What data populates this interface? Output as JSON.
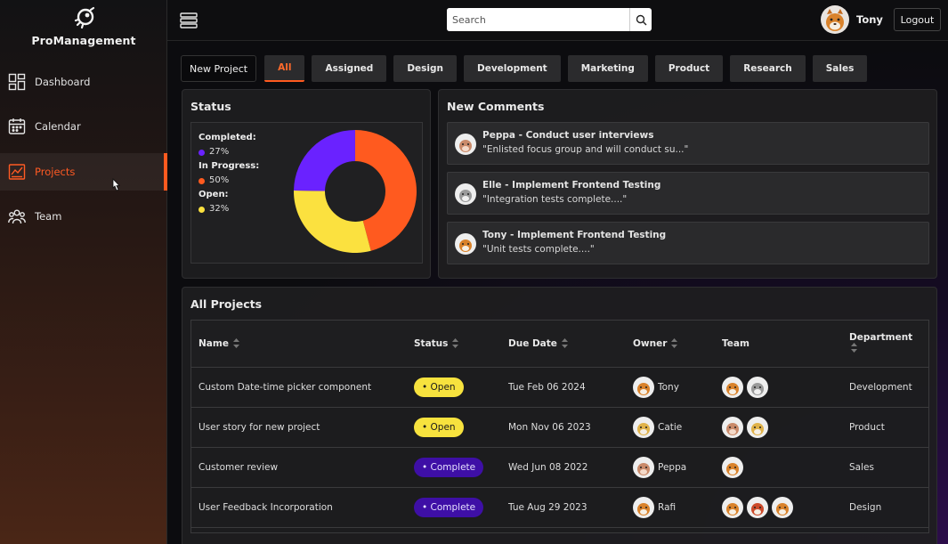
{
  "brand": {
    "name": "ProManagement"
  },
  "sidebar": {
    "items": [
      {
        "label": "Dashboard",
        "icon": "dashboard-icon"
      },
      {
        "label": "Calendar",
        "icon": "calendar-icon"
      },
      {
        "label": "Projects",
        "icon": "projects-chart-icon",
        "active": true
      },
      {
        "label": "Team",
        "icon": "team-icon"
      }
    ]
  },
  "header": {
    "search_placeholder": "Search",
    "user_name": "Tony",
    "logout_label": "Logout"
  },
  "toolbar": {
    "new_project_label": "New Project",
    "tabs": [
      "All",
      "Assigned",
      "Design",
      "Development",
      "Marketing",
      "Product",
      "Research",
      "Sales"
    ],
    "active_tab": "All"
  },
  "status_card": {
    "title": "Status",
    "completed_label": "Completed:",
    "completed_value": "27%",
    "in_progress_label": "In Progress:",
    "in_progress_value": "50%",
    "open_label": "Open:",
    "open_value": "32%"
  },
  "chart_data": {
    "type": "pie",
    "categories": [
      "Completed",
      "In Progress",
      "Open"
    ],
    "values": [
      27,
      50,
      32
    ],
    "colors": [
      "#6a22ff",
      "#ff5a1f",
      "#fbe13f"
    ]
  },
  "comments": {
    "title": "New Comments",
    "items": [
      {
        "title": "Peppa - Conduct user interviews",
        "text": "\"Enlisted focus group and will conduct su...\""
      },
      {
        "title": "Elle - Implement Frontend Testing",
        "text": "\"Integration tests complete....\""
      },
      {
        "title": "Tony - Implement Frontend Testing",
        "text": "\"Unit tests complete....\""
      }
    ]
  },
  "projects": {
    "title": "All Projects",
    "columns": [
      "Name",
      "Status",
      "Due Date",
      "Owner",
      "Team",
      "Department"
    ],
    "rows": [
      {
        "name": "Custom Date-time picker component",
        "status": "• Open",
        "due": "Tue Feb 06 2024",
        "owner": "Tony",
        "department": "Development"
      },
      {
        "name": "User story for new project",
        "status": "• Open",
        "due": "Mon Nov 06 2023",
        "owner": "Catie",
        "department": "Product"
      },
      {
        "name": "Customer review",
        "status": "• Complete",
        "due": "Wed Jun 08 2022",
        "owner": "Peppa",
        "department": "Sales"
      },
      {
        "name": "User Feedback Incorporation",
        "status": "• Complete",
        "due": "Tue Aug 29 2023",
        "owner": "Rafi",
        "department": "Design"
      }
    ]
  }
}
